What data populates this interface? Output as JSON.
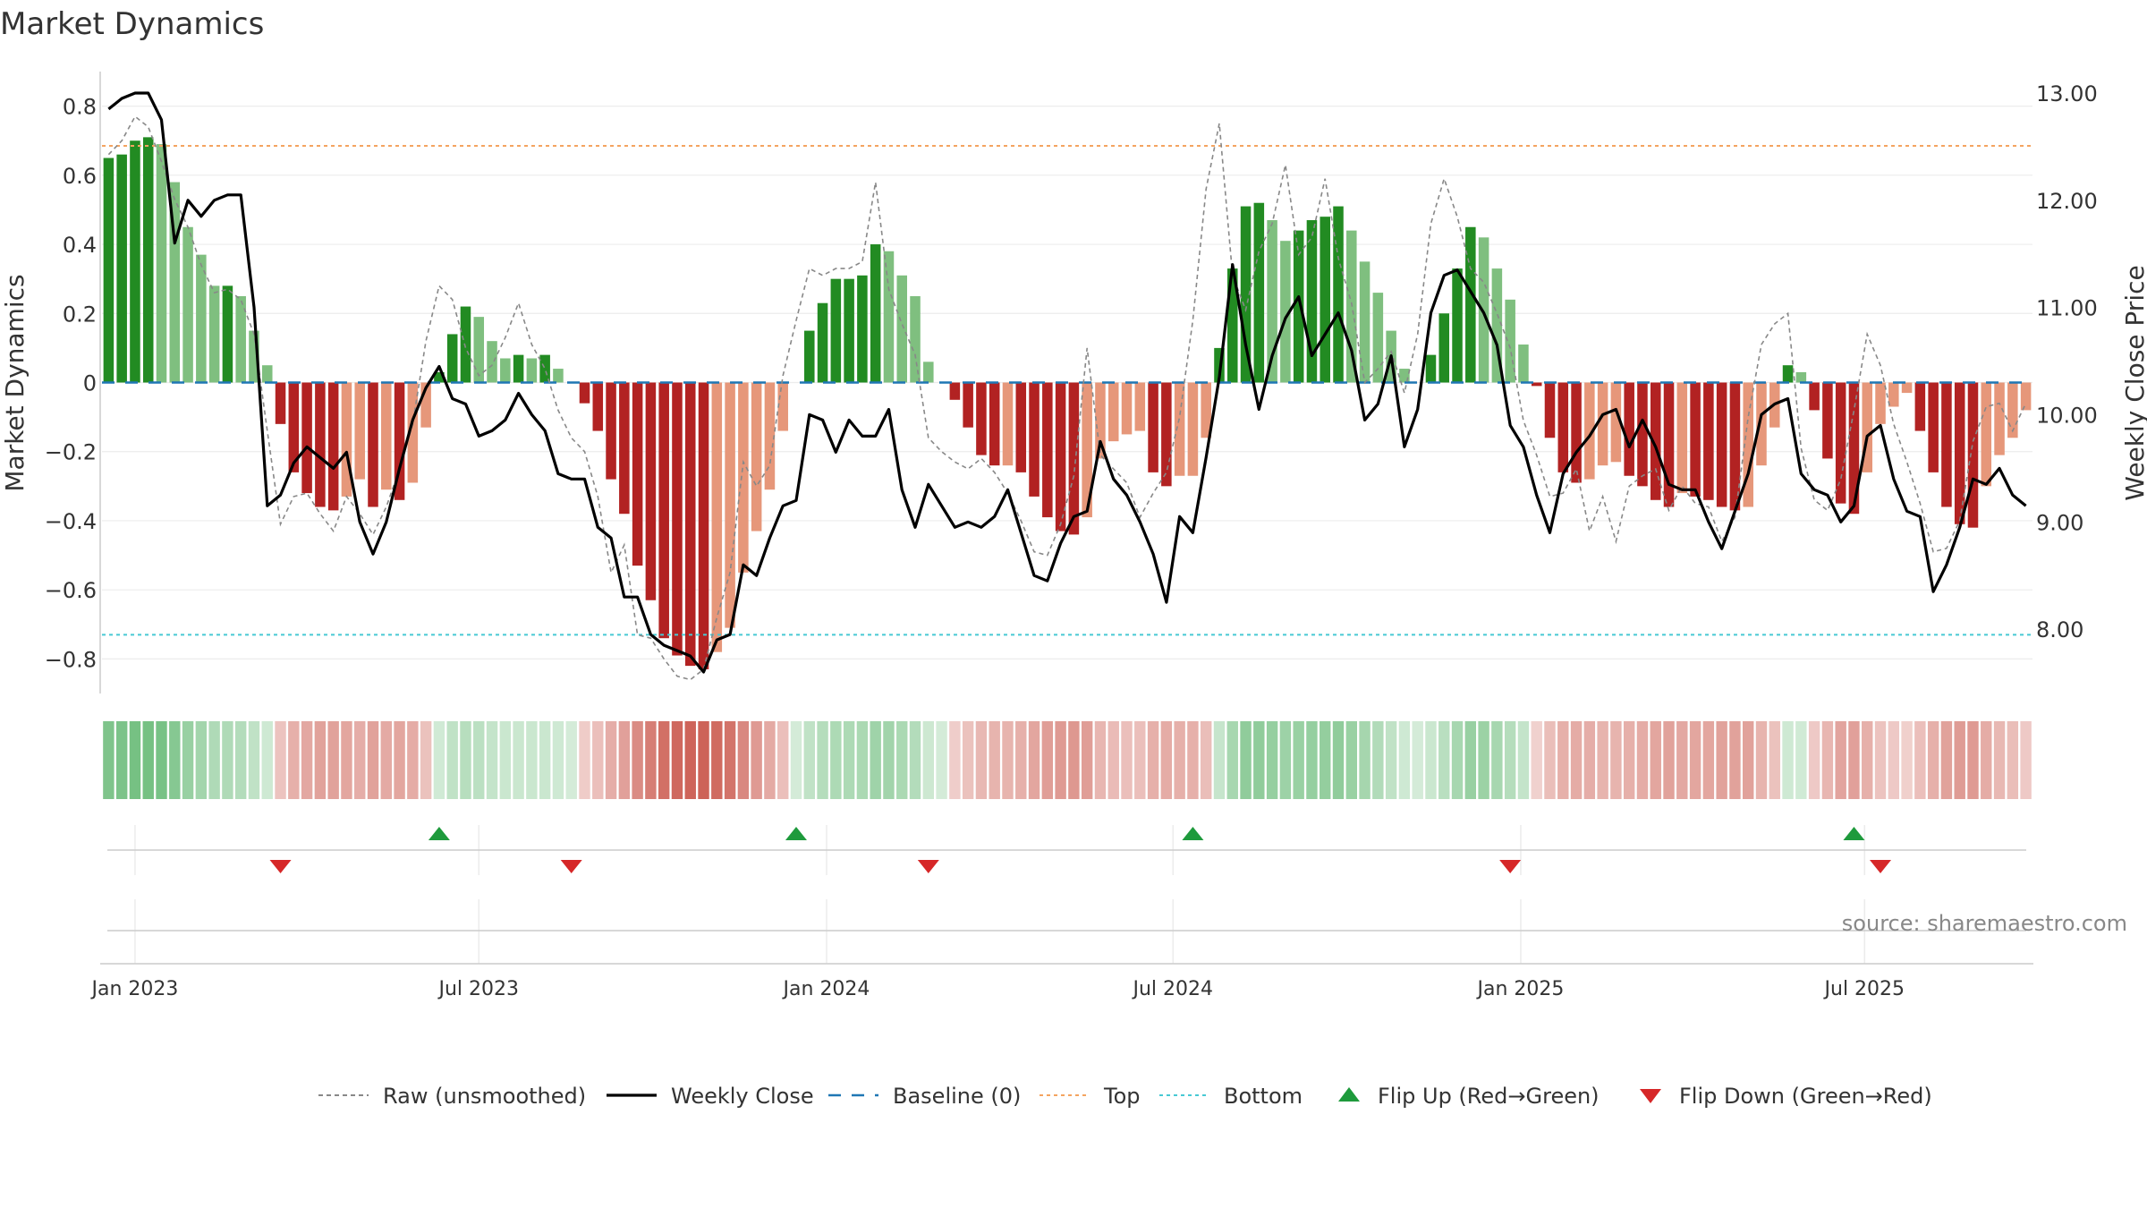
{
  "chart_data": {
    "type": "bar",
    "title": "Market Dynamics",
    "ylabel": "Market Dynamics",
    "y2label": "Weekly Close Price",
    "ylim": [
      -0.9,
      0.9
    ],
    "y2lim": [
      7.4,
      13.2
    ],
    "yticks": [
      0.8,
      0.6,
      0.4,
      0.2,
      0,
      -0.2,
      -0.4,
      -0.6,
      -0.8
    ],
    "ytick_labels": [
      "0.8",
      "0.6",
      "0.4",
      "0.2",
      "0",
      "−0.2",
      "−0.4",
      "−0.6",
      "−0.8"
    ],
    "y2ticks": [
      13,
      12,
      11,
      10,
      9,
      8
    ],
    "y2tick_labels": [
      "13.00",
      "12.00",
      "11.00",
      "10.00",
      "9.00",
      "8.00"
    ],
    "x_ticks": [
      {
        "week": 2.5,
        "label": "Jan 2023"
      },
      {
        "week": 28.5,
        "label": "Jul 2023"
      },
      {
        "week": 54.8,
        "label": "Jan 2024"
      },
      {
        "week": 81,
        "label": "Jul 2024"
      },
      {
        "week": 107.3,
        "label": "Jan 2025"
      },
      {
        "week": 133.3,
        "label": "Jul 2025"
      }
    ],
    "top_level": 0.685,
    "bottom_level": -0.73,
    "baseline": 0,
    "dynamics": [
      0.65,
      0.66,
      0.7,
      0.71,
      0.69,
      0.58,
      0.45,
      0.37,
      0.28,
      0.28,
      0.25,
      0.15,
      0.05,
      -0.12,
      -0.26,
      -0.32,
      -0.36,
      -0.37,
      -0.33,
      -0.28,
      -0.36,
      -0.31,
      -0.34,
      -0.29,
      -0.13,
      0.03,
      0.14,
      0.22,
      0.19,
      0.12,
      0.07,
      0.08,
      0.07,
      0.08,
      0.04,
      0,
      -0.06,
      -0.14,
      -0.28,
      -0.38,
      -0.53,
      -0.63,
      -0.74,
      -0.79,
      -0.82,
      -0.83,
      -0.78,
      -0.71,
      -0.55,
      -0.43,
      -0.31,
      -0.14,
      0,
      0.15,
      0.23,
      0.3,
      0.3,
      0.31,
      0.4,
      0.38,
      0.31,
      0.25,
      0.06,
      0,
      -0.05,
      -0.13,
      -0.21,
      -0.24,
      -0.24,
      -0.26,
      -0.33,
      -0.39,
      -0.43,
      -0.44,
      -0.39,
      -0.22,
      -0.17,
      -0.15,
      -0.14,
      -0.26,
      -0.3,
      -0.27,
      -0.27,
      -0.16,
      0.1,
      0.33,
      0.51,
      0.52,
      0.47,
      0.41,
      0.44,
      0.47,
      0.48,
      0.51,
      0.44,
      0.35,
      0.26,
      0.15,
      0.04,
      0,
      0.08,
      0.2,
      0.33,
      0.45,
      0.42,
      0.33,
      0.24,
      0.11,
      -0.01,
      -0.16,
      -0.26,
      -0.29,
      -0.28,
      -0.24,
      -0.23,
      -0.27,
      -0.3,
      -0.34,
      -0.36,
      -0.32,
      -0.33,
      -0.34,
      -0.36,
      -0.37,
      -0.36,
      -0.24,
      -0.13,
      0.05,
      0.03,
      -0.08,
      -0.22,
      -0.35,
      -0.38,
      -0.26,
      -0.12,
      -0.07,
      -0.03,
      -0.14,
      -0.26,
      -0.36,
      -0.41,
      -0.42,
      -0.3,
      -0.21,
      -0.16,
      -0.08
    ],
    "raw": [
      0.66,
      0.7,
      0.77,
      0.74,
      0.64,
      0.53,
      0.45,
      0.34,
      0.26,
      0.27,
      0.24,
      0.14,
      -0.14,
      -0.41,
      -0.33,
      -0.32,
      -0.38,
      -0.43,
      -0.33,
      -0.38,
      -0.44,
      -0.36,
      -0.25,
      -0.12,
      0.12,
      0.28,
      0.24,
      0.1,
      0.02,
      0.05,
      0.13,
      0.23,
      0.11,
      0.04,
      -0.08,
      -0.16,
      -0.2,
      -0.33,
      -0.55,
      -0.47,
      -0.73,
      -0.74,
      -0.8,
      -0.85,
      -0.86,
      -0.83,
      -0.68,
      -0.55,
      -0.23,
      -0.3,
      -0.24,
      0.02,
      0.18,
      0.33,
      0.31,
      0.33,
      0.33,
      0.35,
      0.58,
      0.27,
      0.17,
      0.08,
      -0.16,
      -0.2,
      -0.23,
      -0.25,
      -0.22,
      -0.26,
      -0.32,
      -0.4,
      -0.49,
      -0.5,
      -0.41,
      -0.27,
      0.1,
      -0.21,
      -0.25,
      -0.29,
      -0.39,
      -0.32,
      -0.26,
      -0.1,
      0.18,
      0.56,
      0.75,
      0.31,
      0.21,
      0.38,
      0.46,
      0.63,
      0.37,
      0.42,
      0.59,
      0.36,
      0.23,
      0.0,
      0.04,
      0.09,
      -0.03,
      0.14,
      0.46,
      0.59,
      0.48,
      0.33,
      0.29,
      0.2,
      0.1,
      -0.11,
      -0.21,
      -0.33,
      -0.32,
      -0.25,
      -0.43,
      -0.33,
      -0.46,
      -0.3,
      -0.27,
      -0.25,
      -0.37,
      -0.3,
      -0.35,
      -0.36,
      -0.46,
      -0.39,
      -0.1,
      0.11,
      0.17,
      0.2,
      -0.19,
      -0.34,
      -0.37,
      -0.28,
      -0.08,
      0.14,
      0.05,
      -0.12,
      -0.23,
      -0.35,
      -0.49,
      -0.48,
      -0.4,
      -0.17,
      -0.07,
      -0.06,
      -0.14,
      -0.06
    ],
    "weekly_close": [
      12.85,
      12.95,
      13.0,
      13.0,
      12.75,
      11.6,
      12.0,
      11.85,
      12.0,
      12.05,
      12.05,
      11.0,
      9.15,
      9.25,
      9.55,
      9.7,
      9.6,
      9.5,
      9.65,
      9.0,
      8.7,
      9.0,
      9.5,
      9.95,
      10.25,
      10.45,
      10.15,
      10.1,
      9.8,
      9.85,
      9.95,
      10.2,
      10.0,
      9.85,
      9.45,
      9.4,
      9.4,
      8.95,
      8.85,
      8.3,
      8.3,
      7.95,
      7.85,
      7.8,
      7.75,
      7.6,
      7.9,
      7.95,
      8.6,
      8.5,
      8.85,
      9.15,
      9.2,
      10.0,
      9.95,
      9.65,
      9.95,
      9.8,
      9.8,
      10.05,
      9.3,
      8.95,
      9.35,
      9.15,
      8.95,
      9.0,
      8.95,
      9.05,
      9.3,
      8.9,
      8.5,
      8.45,
      8.8,
      9.05,
      9.1,
      9.75,
      9.4,
      9.25,
      9.0,
      8.7,
      8.25,
      9.05,
      8.9,
      9.6,
      10.35,
      11.4,
      10.65,
      10.05,
      10.55,
      10.9,
      11.1,
      10.55,
      10.75,
      10.95,
      10.6,
      9.95,
      10.1,
      10.55,
      9.7,
      10.05,
      10.95,
      11.3,
      11.35,
      11.15,
      10.95,
      10.65,
      9.9,
      9.7,
      9.25,
      8.9,
      9.45,
      9.65,
      9.8,
      10.0,
      10.05,
      9.7,
      9.95,
      9.7,
      9.35,
      9.3,
      9.3,
      9.0,
      8.75,
      9.1,
      9.45,
      10.0,
      10.1,
      10.15,
      9.45,
      9.3,
      9.25,
      9.0,
      9.15,
      9.8,
      9.9,
      9.4,
      9.1,
      9.05,
      8.35,
      8.6,
      8.95,
      9.4,
      9.35,
      9.5,
      9.25,
      9.15
    ],
    "flip_up_weeks": [
      25,
      52,
      82,
      132
    ],
    "flip_down_weeks": [
      13,
      35,
      62,
      106,
      134
    ],
    "legend": [
      {
        "label": "Raw (unsmoothed)",
        "style": "dashed-gray-line"
      },
      {
        "label": "Weekly Close",
        "style": "black-line"
      },
      {
        "label": "Baseline (0)",
        "style": "dashed-blue-line"
      },
      {
        "label": "Top",
        "style": "dotted-orange-line"
      },
      {
        "label": "Bottom",
        "style": "dotted-cyan-line"
      },
      {
        "label": "Flip Up (Red→Green)",
        "style": "green-up-triangle"
      },
      {
        "label": "Flip Down (Green→Red)",
        "style": "red-down-triangle"
      }
    ],
    "source": "source: sharemaestro.com",
    "colors": {
      "strong_green": "#228b22",
      "light_green": "#7fbf7f",
      "strong_red": "#b22222",
      "light_red": "#e6977a",
      "raw": "#888888",
      "close": "#000000",
      "baseline": "#1f77b4",
      "top": "#f4a460",
      "bottom": "#48c9d4",
      "flip_up": "#1e9a3c",
      "flip_down": "#d62728"
    }
  }
}
